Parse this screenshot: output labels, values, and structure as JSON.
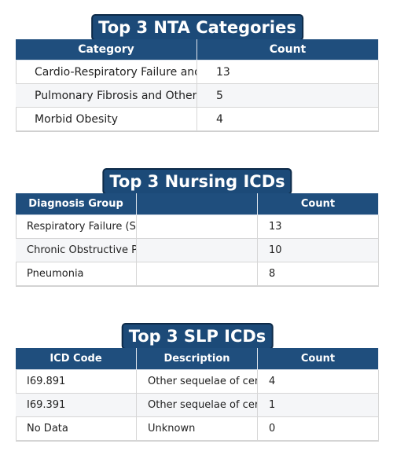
{
  "tables": [
    {
      "title": "Top 3 NTA Categories",
      "columns": [
        "Category",
        "Count"
      ],
      "rows": [
        [
          "Cardio-Respiratory Failure and S",
          13
        ],
        [
          "Pulmonary Fibrosis and Other C",
          5
        ],
        [
          "Morbid Obesity",
          4
        ]
      ]
    },
    {
      "title": "Top 3 Nursing ICDs",
      "columns": [
        "Diagnosis Group",
        "Count"
      ],
      "rows": [
        [
          "Respiratory Failure (SCI",
          13
        ],
        [
          "Chronic Obstructive Pul",
          10
        ],
        [
          "Pneumonia",
          8
        ]
      ]
    },
    {
      "title": "Top 3 SLP ICDs",
      "columns": [
        "ICD Code",
        "Description",
        "Count"
      ],
      "rows": [
        [
          "I69.891",
          "Other sequelae of cereb",
          4
        ],
        [
          "I69.391",
          "Other sequelae of cereb",
          1
        ],
        [
          "No Data",
          "Unknown",
          0
        ]
      ]
    }
  ]
}
